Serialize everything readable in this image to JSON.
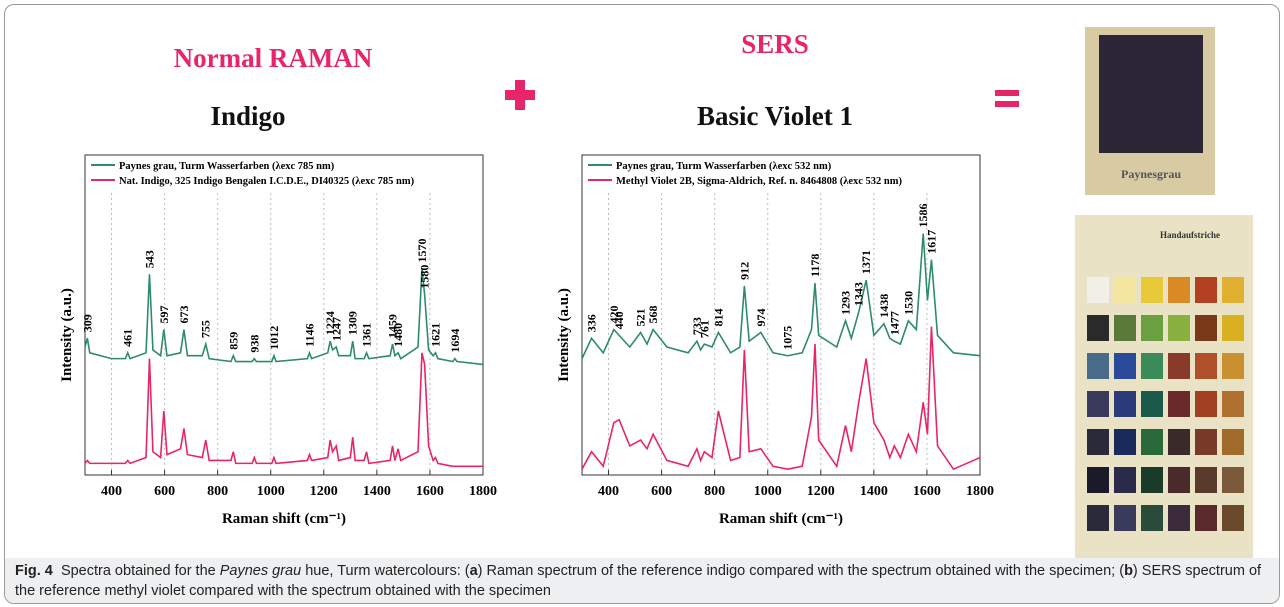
{
  "headings": {
    "left": {
      "method": "Normal RAMAN",
      "compound": "Indigo"
    },
    "right": {
      "method": "SERS",
      "compound": "Basic Violet 1"
    }
  },
  "swatch_label": "Paynesgrau",
  "card_title": "Handaufstriche",
  "chart_data": [
    {
      "type": "line",
      "x_label": "Raman shift (cm⁻¹)",
      "y_label": "Intensity (a.u.)",
      "xlim": [
        300,
        1800
      ],
      "xticks": [
        400,
        600,
        800,
        1000,
        1200,
        1400,
        1600,
        1800
      ],
      "ylim": [
        0,
        110
      ],
      "grid": true,
      "legend": "top-left",
      "x": [
        300,
        309,
        318,
        400,
        452,
        461,
        470,
        530,
        543,
        556,
        585,
        597,
        609,
        660,
        673,
        686,
        742,
        755,
        768,
        850,
        859,
        868,
        930,
        938,
        946,
        1004,
        1012,
        1020,
        1138,
        1146,
        1154,
        1215,
        1224,
        1233,
        1247,
        1256,
        1300,
        1309,
        1318,
        1352,
        1361,
        1370,
        1450,
        1459,
        1468,
        1480,
        1490,
        1555,
        1570,
        1580,
        1595,
        1612,
        1621,
        1630,
        1686,
        1694,
        1702,
        1800
      ],
      "series": [
        {
          "name": "Paynes grau, Turm Wasserfarben (λexc 785 nm)",
          "color": "#2e8b6e",
          "values": [
            44,
            47,
            42,
            40,
            40,
            42,
            40,
            42,
            69,
            43,
            41,
            50,
            41,
            42,
            50,
            41,
            41,
            45,
            40,
            39,
            41,
            39,
            39,
            40,
            39,
            39,
            41,
            39,
            40,
            42,
            40,
            42,
            46,
            43,
            44,
            41,
            41,
            46,
            40,
            40,
            42,
            40,
            41,
            45,
            41,
            42,
            40,
            44,
            71,
            62,
            43,
            41,
            42,
            40,
            39,
            40,
            39,
            38
          ]
        },
        {
          "name": "Nat. Indigo, 325 Indigo Bengalen I.C.D.E., DI40325 (λexc 785 nm)",
          "color": "#e8246b",
          "values": [
            4,
            5,
            4,
            4,
            4,
            5,
            4,
            6,
            40,
            8,
            6,
            22,
            7,
            9,
            16,
            7,
            6,
            12,
            5,
            5,
            8,
            4,
            4,
            6,
            4,
            4,
            6,
            4,
            5,
            7,
            5,
            6,
            12,
            8,
            10,
            5,
            6,
            13,
            5,
            5,
            8,
            4,
            5,
            10,
            5,
            9,
            5,
            8,
            42,
            38,
            10,
            5,
            6,
            4,
            3,
            3,
            3,
            3
          ]
        }
      ],
      "peak_labels": [
        309,
        461,
        543,
        597,
        673,
        755,
        859,
        938,
        1012,
        1146,
        1224,
        1247,
        1309,
        1361,
        1459,
        1480,
        1570,
        1580,
        1621,
        1694
      ]
    },
    {
      "type": "line",
      "x_label": "Raman shift (cm⁻¹)",
      "y_label": "Intensity (a.u.)",
      "xlim": [
        300,
        1800
      ],
      "xticks": [
        400,
        600,
        800,
        1000,
        1200,
        1400,
        1600,
        1800
      ],
      "ylim": [
        0,
        110
      ],
      "grid": true,
      "legend": "top-left",
      "x": [
        300,
        336,
        380,
        420,
        440,
        480,
        521,
        545,
        568,
        620,
        700,
        733,
        747,
        761,
        790,
        814,
        860,
        895,
        912,
        930,
        974,
        1020,
        1075,
        1130,
        1165,
        1178,
        1192,
        1260,
        1293,
        1315,
        1343,
        1371,
        1400,
        1438,
        1460,
        1477,
        1500,
        1530,
        1560,
        1586,
        1602,
        1617,
        1640,
        1700,
        1800
      ],
      "series": [
        {
          "name": "Paynes grau, Turm Wasserfarben (λexc 532 nm)",
          "color": "#2e8b6e",
          "values": [
            40,
            47,
            42,
            50,
            48,
            44,
            49,
            45,
            50,
            44,
            42,
            46,
            43,
            45,
            44,
            49,
            42,
            44,
            65,
            46,
            49,
            42,
            41,
            42,
            50,
            66,
            48,
            44,
            53,
            47,
            56,
            67,
            48,
            52,
            47,
            46,
            45,
            53,
            50,
            83,
            60,
            74,
            48,
            42,
            41
          ]
        },
        {
          "name": "Methyl Violet 2B, Sigma-Aldrich, Ref. n. 8464808 (λexc 532 nm)",
          "color": "#e8246b",
          "values": [
            2,
            8,
            3,
            18,
            19,
            10,
            12,
            9,
            14,
            5,
            3,
            9,
            5,
            8,
            6,
            22,
            5,
            6,
            43,
            8,
            9,
            3,
            2,
            3,
            20,
            45,
            12,
            3,
            17,
            8,
            25,
            40,
            18,
            12,
            6,
            10,
            6,
            14,
            8,
            25,
            14,
            51,
            10,
            2,
            6
          ]
        }
      ],
      "peak_labels": [
        336,
        420,
        440,
        521,
        568,
        733,
        761,
        814,
        912,
        974,
        1075,
        1178,
        1293,
        1343,
        1371,
        1438,
        1477,
        1530,
        1586,
        1617
      ]
    }
  ],
  "caption": {
    "label": "Fig. 4",
    "parts": [
      "Spectra obtained for the ",
      "Paynes grau",
      " hue, Turm watercolours: (",
      "a",
      ") Raman spectrum of the reference indigo compared with the spectrum obtained with the specimen; (",
      "b",
      ") SERS spectrum of the reference methyl violet compared with the spectrum obtained with the specimen"
    ]
  }
}
